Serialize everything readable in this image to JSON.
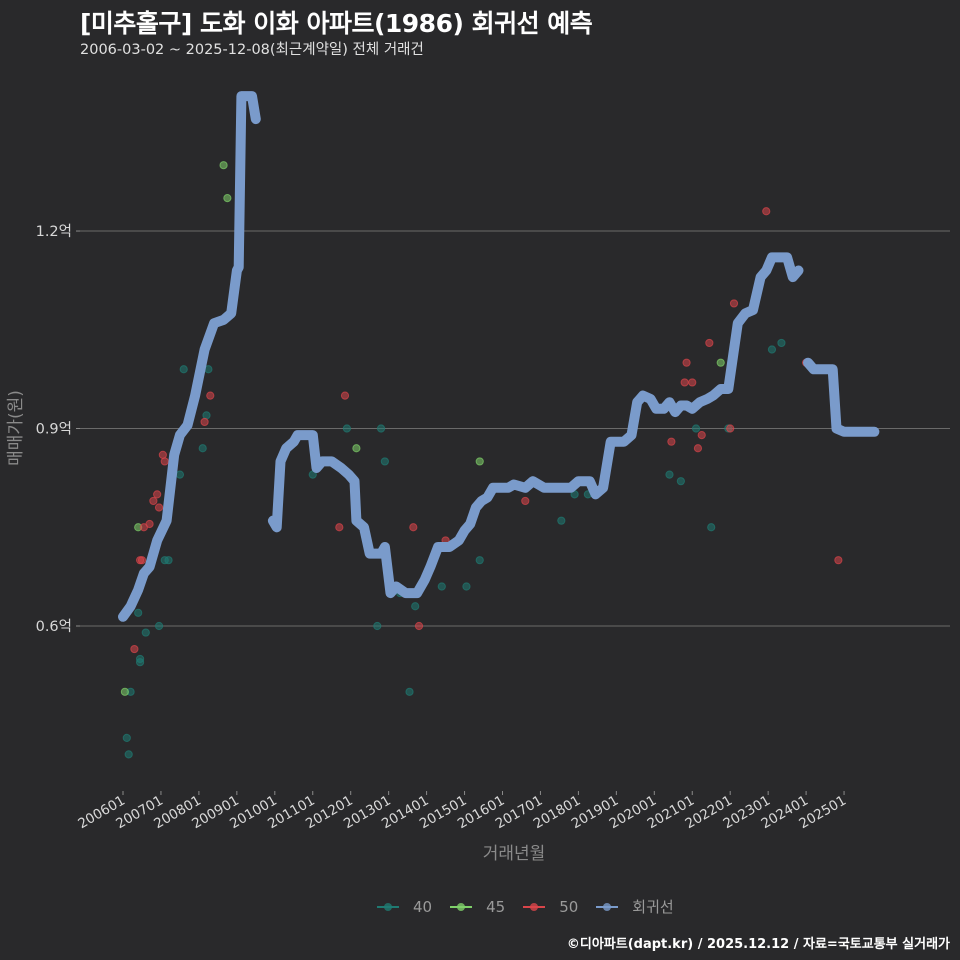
{
  "header": {
    "title": "[미추홀구] 도화 이화 아파트(1986) 회귀선 예측",
    "subtitle": "2006-03-02 ~ 2025-12-08(최근계약일) 전체 거래건"
  },
  "footer": {
    "credit": "©디아파트(dapt.kr) / 2025.12.12 / 자료=국토교통부 실거래가"
  },
  "legend": {
    "items": [
      {
        "label": "40",
        "color": "#1f7a72"
      },
      {
        "label": "45",
        "color": "#7fd06a"
      },
      {
        "label": "50",
        "color": "#d9454a"
      },
      {
        "label": "회귀선",
        "color": "#7a9bcb"
      }
    ]
  },
  "chart_data": {
    "type": "scatter",
    "title": "[미추홀구] 도화 이화 아파트(1986) 회귀선 예측",
    "subtitle": "2006-03-02 ~ 2025-12-08(최근계약일) 전체 거래건",
    "xlabel": "거래년월",
    "ylabel": "매매가(원)",
    "x_ticks": [
      "200601",
      "200701",
      "200801",
      "200901",
      "201001",
      "201101",
      "201201",
      "201301",
      "201401",
      "201501",
      "201601",
      "201701",
      "201801",
      "201901",
      "202001",
      "202101",
      "202201",
      "202301",
      "202401",
      "202501"
    ],
    "y_ticks": [
      {
        "value": 0.6,
        "label": "0.6억"
      },
      {
        "value": 0.9,
        "label": "0.9억"
      },
      {
        "value": 1.2,
        "label": "1.2억"
      }
    ],
    "ylim": [
      0.35,
      1.45
    ],
    "grid": "horizontal major lines",
    "legend_position": "bottom",
    "series": [
      {
        "name": "40",
        "color": "#1f7a72",
        "points": [
          [
            2006.1,
            0.43
          ],
          [
            2006.15,
            0.405
          ],
          [
            2006.2,
            0.5
          ],
          [
            2006.4,
            0.62
          ],
          [
            2006.45,
            0.545
          ],
          [
            2006.45,
            0.55
          ],
          [
            2006.6,
            0.59
          ],
          [
            2006.95,
            0.6
          ],
          [
            2007.1,
            0.7
          ],
          [
            2007.2,
            0.7
          ],
          [
            2007.5,
            0.83
          ],
          [
            2007.6,
            0.99
          ],
          [
            2008.1,
            0.87
          ],
          [
            2008.2,
            0.92
          ],
          [
            2008.25,
            0.99
          ],
          [
            2011.0,
            0.83
          ],
          [
            2011.9,
            0.9
          ],
          [
            2012.7,
            0.6
          ],
          [
            2012.8,
            0.9
          ],
          [
            2012.9,
            0.85
          ],
          [
            2013.3,
            0.65
          ],
          [
            2013.55,
            0.5
          ],
          [
            2013.7,
            0.63
          ],
          [
            2014.4,
            0.66
          ],
          [
            2015.05,
            0.66
          ],
          [
            2015.4,
            0.7
          ],
          [
            2017.55,
            0.76
          ],
          [
            2017.9,
            0.8
          ],
          [
            2018.25,
            0.8
          ],
          [
            2020.4,
            0.83
          ],
          [
            2020.7,
            0.82
          ],
          [
            2021.1,
            0.9
          ],
          [
            2021.5,
            0.75
          ],
          [
            2021.95,
            0.9
          ],
          [
            2023.1,
            1.02
          ],
          [
            2023.35,
            1.03
          ]
        ]
      },
      {
        "name": "45",
        "color": "#7fd06a",
        "points": [
          [
            2006.05,
            0.5
          ],
          [
            2006.4,
            0.75
          ],
          [
            2008.65,
            1.3
          ],
          [
            2008.75,
            1.25
          ],
          [
            2012.15,
            0.87
          ],
          [
            2015.4,
            0.85
          ],
          [
            2021.75,
            1.0
          ]
        ]
      },
      {
        "name": "50",
        "color": "#d9454a",
        "points": [
          [
            2006.3,
            0.565
          ],
          [
            2006.45,
            0.7
          ],
          [
            2006.5,
            0.7
          ],
          [
            2006.55,
            0.75
          ],
          [
            2006.7,
            0.755
          ],
          [
            2006.8,
            0.79
          ],
          [
            2006.9,
            0.8
          ],
          [
            2006.95,
            0.78
          ],
          [
            2007.05,
            0.86
          ],
          [
            2007.1,
            0.85
          ],
          [
            2008.15,
            0.91
          ],
          [
            2008.3,
            0.95
          ],
          [
            2011.7,
            0.75
          ],
          [
            2011.85,
            0.95
          ],
          [
            2013.65,
            0.75
          ],
          [
            2013.8,
            0.6
          ],
          [
            2014.5,
            0.73
          ],
          [
            2016.6,
            0.79
          ],
          [
            2020.45,
            0.88
          ],
          [
            2020.8,
            0.97
          ],
          [
            2020.85,
            1.0
          ],
          [
            2021.0,
            0.97
          ],
          [
            2021.15,
            0.87
          ],
          [
            2021.25,
            0.89
          ],
          [
            2021.45,
            1.03
          ],
          [
            2022.0,
            0.9
          ],
          [
            2022.1,
            1.09
          ],
          [
            2022.95,
            1.23
          ],
          [
            2024.0,
            1.0
          ],
          [
            2024.85,
            0.7
          ]
        ]
      }
    ],
    "regression": {
      "name": "회귀선",
      "color": "#7a9bcb",
      "segments": [
        [
          [
            2006.0,
            0.614
          ],
          [
            2006.2,
            0.63
          ],
          [
            2006.4,
            0.655
          ],
          [
            2006.55,
            0.68
          ],
          [
            2006.7,
            0.69
          ],
          [
            2006.9,
            0.73
          ],
          [
            2007.15,
            0.76
          ],
          [
            2007.35,
            0.86
          ],
          [
            2007.5,
            0.89
          ],
          [
            2007.7,
            0.905
          ],
          [
            2007.9,
            0.95
          ],
          [
            2008.15,
            1.02
          ],
          [
            2008.4,
            1.06
          ],
          [
            2008.65,
            1.065
          ],
          [
            2008.85,
            1.075
          ],
          [
            2009.0,
            1.14
          ],
          [
            2009.05,
            1.145
          ],
          [
            2009.12,
            1.405
          ],
          [
            2009.4,
            1.405
          ],
          [
            2009.5,
            1.37
          ]
        ],
        [
          [
            2009.95,
            0.76
          ],
          [
            2010.05,
            0.75
          ],
          [
            2010.15,
            0.85
          ],
          [
            2010.3,
            0.87
          ],
          [
            2010.5,
            0.88
          ],
          [
            2010.6,
            0.89
          ],
          [
            2010.85,
            0.89
          ],
          [
            2011.0,
            0.89
          ],
          [
            2011.1,
            0.84
          ],
          [
            2011.25,
            0.85
          ],
          [
            2011.5,
            0.85
          ],
          [
            2011.75,
            0.84
          ],
          [
            2011.95,
            0.83
          ],
          [
            2012.1,
            0.82
          ],
          [
            2012.15,
            0.76
          ],
          [
            2012.35,
            0.75
          ],
          [
            2012.5,
            0.71
          ],
          [
            2012.8,
            0.71
          ],
          [
            2012.9,
            0.72
          ],
          [
            2013.05,
            0.65
          ],
          [
            2013.2,
            0.66
          ],
          [
            2013.45,
            0.65
          ],
          [
            2013.75,
            0.65
          ],
          [
            2013.95,
            0.67
          ],
          [
            2014.1,
            0.69
          ],
          [
            2014.3,
            0.72
          ],
          [
            2014.6,
            0.72
          ],
          [
            2014.85,
            0.73
          ],
          [
            2015.0,
            0.745
          ],
          [
            2015.15,
            0.755
          ],
          [
            2015.3,
            0.78
          ],
          [
            2015.45,
            0.79
          ],
          [
            2015.6,
            0.795
          ],
          [
            2015.75,
            0.81
          ],
          [
            2016.15,
            0.81
          ],
          [
            2016.3,
            0.815
          ],
          [
            2016.6,
            0.81
          ],
          [
            2016.8,
            0.82
          ],
          [
            2017.1,
            0.81
          ],
          [
            2017.5,
            0.81
          ],
          [
            2017.8,
            0.81
          ],
          [
            2018.0,
            0.82
          ],
          [
            2018.3,
            0.82
          ],
          [
            2018.45,
            0.8
          ],
          [
            2018.65,
            0.81
          ],
          [
            2018.85,
            0.88
          ],
          [
            2019.2,
            0.88
          ],
          [
            2019.4,
            0.89
          ],
          [
            2019.55,
            0.94
          ],
          [
            2019.7,
            0.95
          ],
          [
            2019.9,
            0.945
          ],
          [
            2020.05,
            0.93
          ],
          [
            2020.25,
            0.93
          ],
          [
            2020.4,
            0.94
          ],
          [
            2020.55,
            0.925
          ],
          [
            2020.7,
            0.935
          ],
          [
            2020.85,
            0.935
          ],
          [
            2021.0,
            0.93
          ],
          [
            2021.2,
            0.94
          ],
          [
            2021.4,
            0.945
          ],
          [
            2021.55,
            0.95
          ],
          [
            2021.75,
            0.96
          ],
          [
            2021.95,
            0.96
          ],
          [
            2022.2,
            1.06
          ],
          [
            2022.4,
            1.075
          ],
          [
            2022.6,
            1.08
          ],
          [
            2022.8,
            1.13
          ],
          [
            2022.95,
            1.14
          ],
          [
            2023.1,
            1.16
          ],
          [
            2023.5,
            1.16
          ],
          [
            2023.65,
            1.13
          ],
          [
            2023.8,
            1.14
          ]
        ],
        [
          [
            2024.05,
            1.0
          ],
          [
            2024.2,
            0.99
          ],
          [
            2024.5,
            0.99
          ],
          [
            2024.7,
            0.99
          ],
          [
            2024.8,
            0.9
          ],
          [
            2025.0,
            0.895
          ],
          [
            2025.5,
            0.895
          ],
          [
            2025.8,
            0.895
          ]
        ]
      ]
    }
  }
}
